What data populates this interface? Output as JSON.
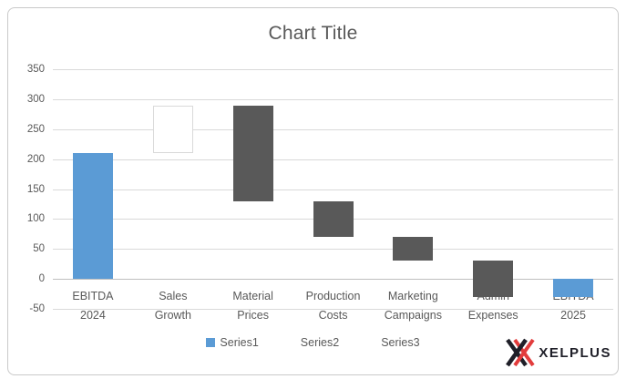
{
  "chart_data": {
    "type": "bar",
    "subtype": "waterfall (stacked columns)",
    "title": "Chart Title",
    "categories": [
      "EBITDA 2024",
      "Sales Growth",
      "Material Prices",
      "Production Costs",
      "Marketing Campaigns",
      "Admin Expenses",
      "EBITDA 2025"
    ],
    "category_lines": [
      [
        "EBITDA",
        "2024"
      ],
      [
        "Sales",
        "Growth"
      ],
      [
        "Material",
        "Prices"
      ],
      [
        "Production",
        "Costs"
      ],
      [
        "Marketing",
        "Campaigns"
      ],
      [
        "Admin",
        "Expenses"
      ],
      [
        "EBITDA",
        "2025"
      ]
    ],
    "bars": [
      {
        "category": "EBITDA 2024",
        "from": 0,
        "to": 210,
        "value": 210,
        "style": "total"
      },
      {
        "category": "Sales Growth",
        "from": 210,
        "to": 290,
        "value": 80,
        "style": "increase"
      },
      {
        "category": "Material Prices",
        "from": 290,
        "to": 130,
        "value": -160,
        "style": "decrease"
      },
      {
        "category": "Production Costs",
        "from": 130,
        "to": 70,
        "value": -60,
        "style": "decrease"
      },
      {
        "category": "Marketing Campaigns",
        "from": 70,
        "to": 30,
        "value": -40,
        "style": "decrease"
      },
      {
        "category": "Admin Expenses",
        "from": 30,
        "to": -30,
        "value": -60,
        "style": "decrease"
      },
      {
        "category": "EBITDA 2025",
        "from": 0,
        "to": -30,
        "value": -30,
        "style": "total"
      }
    ],
    "styles": {
      "total": {
        "fill": "#5B9BD5"
      },
      "increase": {
        "fill": "#FFFFFF",
        "border": "#D9D9D9"
      },
      "decrease": {
        "fill": "#595959"
      }
    },
    "y_ticks": [
      350,
      300,
      250,
      200,
      150,
      100,
      50,
      0,
      -50
    ],
    "ylim": [
      -50,
      350
    ],
    "grid": true,
    "xlabel": "",
    "ylabel": "",
    "legend": {
      "position": "bottom",
      "items": [
        {
          "label": "Series1",
          "marker": "#5B9BD5"
        },
        {
          "label": "Series2",
          "marker": "none"
        },
        {
          "label": "Series3",
          "marker": "none"
        }
      ]
    },
    "colors": {
      "gridline": "#D9D9D9",
      "zero_axis": "#BFBFBF",
      "axis_text": "#595959",
      "title_text": "#595959",
      "frame_border": "#C9C9C9"
    }
  },
  "footer": {
    "brand_text": "XELPLUS",
    "brand_dark": "#1F1F28",
    "brand_red": "#E23C3C"
  }
}
